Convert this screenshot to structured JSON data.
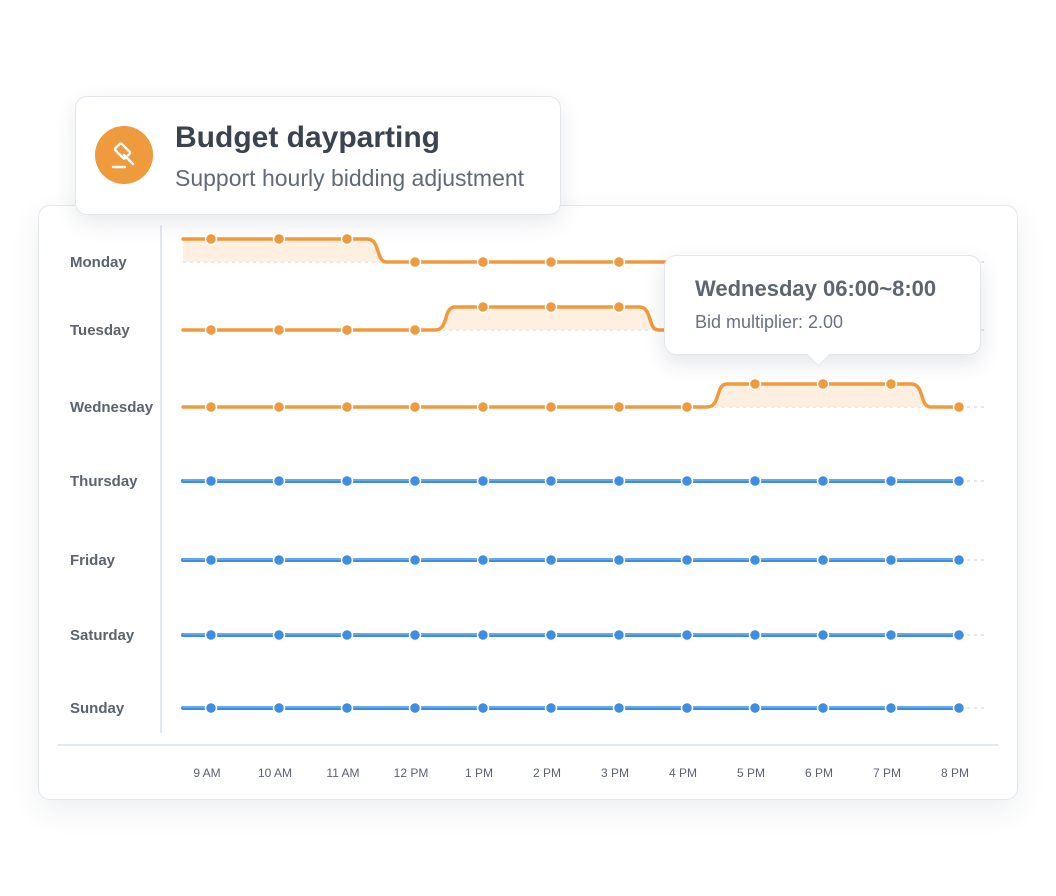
{
  "header": {
    "title": "Budget dayparting",
    "subtitle": "Support hourly bidding adjustment",
    "icon": "gavel-icon"
  },
  "tooltip": {
    "title": "Wednesday 06:00~8:00",
    "body": "Bid multiplier: 2.00"
  },
  "colors": {
    "adjusted": "#f09a3e",
    "adjusted_fill": "#fde9d6",
    "default": "#3d8ee2",
    "axis": "#e3e9f0",
    "label": "#5b6270",
    "tick": "#5b6270"
  },
  "chart_data": {
    "type": "line",
    "x": [
      "9 AM",
      "10 AM",
      "11 AM",
      "12 PM",
      "1 PM",
      "2 PM",
      "3 PM",
      "4 PM",
      "5 PM",
      "6 PM",
      "7 PM",
      "8 PM"
    ],
    "series": [
      {
        "name": "Monday",
        "values": [
          1,
          1,
          1,
          0,
          0,
          0,
          0,
          0,
          0,
          0,
          0,
          0
        ],
        "adjusted": true
      },
      {
        "name": "Tuesday",
        "values": [
          0,
          0,
          0,
          0,
          1,
          1,
          1,
          0,
          0,
          0,
          0,
          0
        ],
        "adjusted": true
      },
      {
        "name": "Wednesday",
        "values": [
          0,
          0,
          0,
          0,
          0,
          0,
          0,
          0,
          1,
          1,
          1,
          0
        ],
        "adjusted": true
      },
      {
        "name": "Thursday",
        "values": [
          0,
          0,
          0,
          0,
          0,
          0,
          0,
          0,
          0,
          0,
          0,
          0
        ],
        "adjusted": false
      },
      {
        "name": "Friday",
        "values": [
          0,
          0,
          0,
          0,
          0,
          0,
          0,
          0,
          0,
          0,
          0,
          0
        ],
        "adjusted": false
      },
      {
        "name": "Saturday",
        "values": [
          0,
          0,
          0,
          0,
          0,
          0,
          0,
          0,
          0,
          0,
          0,
          0
        ],
        "adjusted": false
      },
      {
        "name": "Sunday",
        "values": [
          0,
          0,
          0,
          0,
          0,
          0,
          0,
          0,
          0,
          0,
          0,
          0
        ],
        "adjusted": false
      }
    ],
    "legend": "none",
    "grid": false
  }
}
